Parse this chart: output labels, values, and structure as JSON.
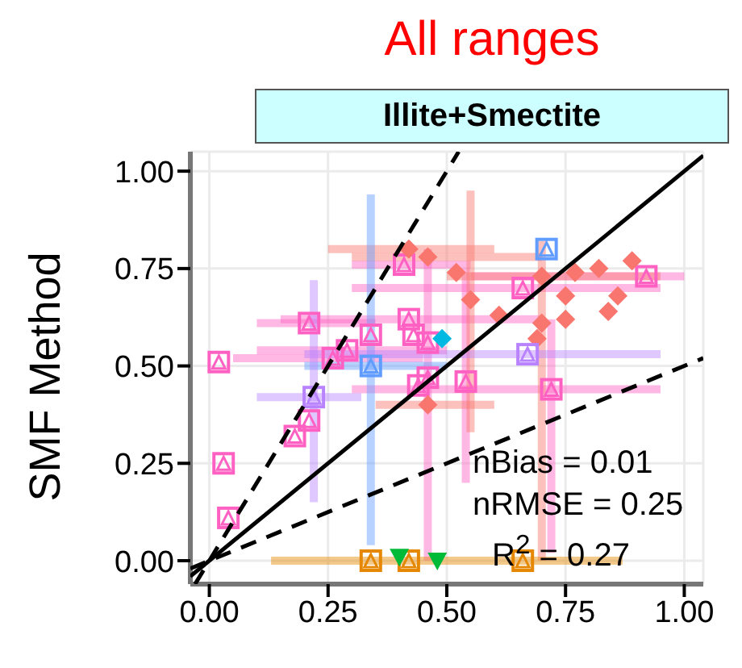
{
  "chart_data": {
    "type": "scatter",
    "title": "All ranges",
    "subtitle": "Illite+Smectite",
    "ylabel": "SMF Method",
    "xlim": [
      -0.04,
      1.04
    ],
    "ylim": [
      -0.06,
      1.05
    ],
    "xticks": [
      {
        "value": 0,
        "label": "0.00"
      },
      {
        "value": 0.25,
        "label": "0.25"
      },
      {
        "value": 0.5,
        "label": "0.50"
      },
      {
        "value": 0.75,
        "label": "0.75"
      },
      {
        "value": 1,
        "label": "1.00"
      }
    ],
    "yticks": [
      {
        "value": 0,
        "label": "0.00"
      },
      {
        "value": 0.25,
        "label": "0.25"
      },
      {
        "value": 0.5,
        "label": "0.50"
      },
      {
        "value": 0.75,
        "label": "0.75"
      },
      {
        "value": 1,
        "label": "1.00"
      }
    ],
    "grid": true,
    "annotations": [
      "nBias = 0.01",
      "nRMSE = 0.25",
      "R$^{2}$ = 0.27"
    ],
    "series": [
      {
        "marker": "square",
        "color": "#ff61c3",
        "x": [
          0.02,
          0.03,
          0.04,
          0.21,
          0.21,
          0.18,
          0.41,
          0.42,
          0.26,
          0.29,
          0.34,
          0.43,
          0.46,
          0.44,
          0.46,
          0.66,
          0.92,
          0.54,
          0.72
        ],
        "values": [
          0.51,
          0.25,
          0.11,
          0.61,
          0.36,
          0.32,
          0.76,
          0.62,
          0.52,
          0.54,
          0.58,
          0.58,
          0.56,
          0.45,
          0.47,
          0.7,
          0.73,
          0.46,
          0.44
        ],
        "xerrors": [
          null,
          null,
          null,
          [
            0.1,
            0.35
          ],
          null,
          null,
          [
            0.3,
            0.55
          ],
          [
            0.15,
            0.7
          ],
          [
            0.05,
            0.45
          ],
          [
            0.1,
            0.5
          ],
          null,
          null,
          null,
          null,
          null,
          [
            0.3,
            0.95
          ],
          [
            0.55,
            1.0
          ],
          null,
          [
            0.3,
            0.95
          ]
        ],
        "errors": [
          null,
          null,
          null,
          null,
          null,
          null,
          null,
          null,
          null,
          null,
          null,
          null,
          null,
          null,
          [
            0.0,
            0.8
          ],
          null,
          null,
          [
            0.2,
            0.75
          ],
          [
            0.02,
            0.62
          ]
        ]
      },
      {
        "marker": "diamond",
        "color": "#f8766d",
        "x": [
          0.42,
          0.46,
          0.52,
          0.55,
          0.61,
          0.7,
          0.77,
          0.82,
          0.89,
          0.86,
          0.75,
          0.75,
          0.7,
          0.69,
          0.84,
          0.46
        ],
        "values": [
          0.8,
          0.78,
          0.74,
          0.67,
          0.63,
          0.73,
          0.74,
          0.75,
          0.77,
          0.68,
          0.68,
          0.62,
          0.61,
          0.57,
          0.64,
          0.4
        ],
        "xerrors": [
          [
            0.25,
            0.6
          ],
          [
            0.3,
            0.7
          ],
          null,
          null,
          null,
          [
            0.5,
            0.95
          ],
          null,
          null,
          null,
          null,
          null,
          null,
          null,
          null,
          null,
          [
            0.35,
            0.6
          ]
        ],
        "errors": [
          null,
          null,
          null,
          [
            0.33,
            0.95
          ],
          null,
          [
            0.0,
            0.82
          ],
          null,
          null,
          null,
          null,
          null,
          null,
          null,
          null,
          null,
          null
        ]
      },
      {
        "type": "scatter",
        "marker": "square",
        "color": "#619cff",
        "x": [
          0.34,
          0.71
        ],
        "values": [
          0.5,
          0.8
        ],
        "errors": [
          [
            0.04,
            0.94
          ],
          null
        ],
        "xerrors": [
          [
            0.2,
            0.5
          ],
          null
        ]
      },
      {
        "type": "scatter",
        "marker": "square",
        "color": "#b983ff",
        "x": [
          0.22,
          0.67
        ],
        "values": [
          0.42,
          0.53
        ],
        "errors": [
          [
            0.15,
            0.72
          ],
          null
        ],
        "xerrors": [
          [
            0.1,
            0.32
          ],
          [
            0.2,
            0.95
          ]
        ]
      },
      {
        "type": "scatter",
        "marker": "diamond",
        "color": "#00b9e3",
        "x": [
          0.49
        ],
        "values": [
          0.57
        ]
      },
      {
        "type": "scatter",
        "marker": "square",
        "color": "#e58700",
        "x": [
          0.34,
          0.42,
          0.66
        ],
        "values": [
          0.0,
          0.0,
          0.0
        ],
        "xerrors": [
          null,
          [
            0.13,
            0.87
          ],
          null
        ]
      },
      {
        "type": "scatter",
        "marker": "triangle",
        "color": "#00ba38",
        "x": [
          0.4,
          0.48
        ],
        "values": [
          0.01,
          0.0
        ]
      },
      {
        "type": "line",
        "color": "#000000",
        "line_style": "solid",
        "x": [
          -0.04,
          1.04
        ],
        "values": [
          -0.04,
          1.04
        ]
      },
      {
        "type": "line",
        "color": "#000000",
        "line_style": "dashed",
        "x": [
          -0.03,
          0.525
        ],
        "values": [
          -0.06,
          1.05
        ]
      },
      {
        "type": "line",
        "color": "#000000",
        "line_style": "dashed",
        "x": [
          -0.04,
          1.04
        ],
        "values": [
          -0.02,
          0.52
        ]
      }
    ]
  }
}
